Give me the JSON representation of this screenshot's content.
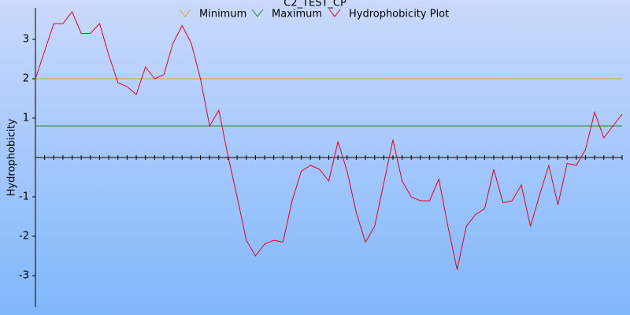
{
  "chart_data": {
    "type": "line",
    "title": "C2_TEST_CP",
    "y_label": "Hydrophobicity",
    "ylim": [
      -3.8,
      3.8
    ],
    "yticks": [
      -3,
      -2,
      -1,
      1,
      2,
      3
    ],
    "legend": "top",
    "series": [
      {
        "name": "Minimum",
        "color": "#e0a040",
        "value": 2
      },
      {
        "name": "Maximum",
        "color": "#1a8a2a",
        "value": 0.8
      },
      {
        "name": "Hydrophobicity Plot",
        "color": "#e8001c",
        "values": [
          2.0,
          2.7,
          3.4,
          3.4,
          3.7,
          3.15,
          3.15,
          3.4,
          2.6,
          1.9,
          1.8,
          1.6,
          2.3,
          2.0,
          2.1,
          2.9,
          3.35,
          2.9,
          2.0,
          0.8,
          1.2,
          0.05,
          -1.0,
          -2.1,
          -2.5,
          -2.2,
          -2.1,
          -2.15,
          -1.1,
          -0.35,
          -0.2,
          -0.3,
          -0.6,
          0.4,
          -0.35,
          -1.4,
          -2.15,
          -1.75,
          -0.65,
          0.45,
          -0.6,
          -1.0,
          -1.1,
          -1.1,
          -0.55,
          -1.75,
          -2.85,
          -1.75,
          -1.45,
          -1.3,
          -0.3,
          -1.15,
          -1.1,
          -0.7,
          -1.75,
          -0.95,
          -0.2,
          -1.2,
          -0.15,
          -0.2,
          0.2,
          1.15,
          0.5,
          0.8,
          1.1
        ]
      }
    ]
  }
}
